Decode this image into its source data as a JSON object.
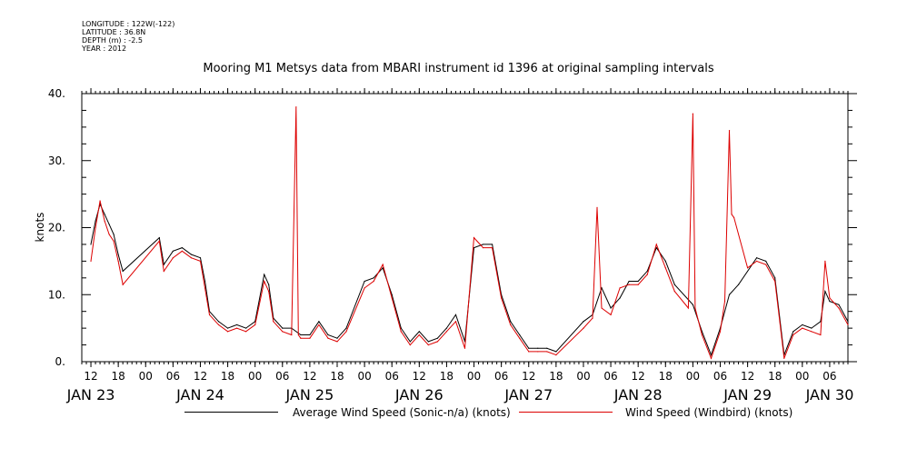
{
  "header": {
    "longitude": "LONGITUDE : 122W(-122)",
    "latitude": "LATITUDE : 36.8N",
    "depth": "DEPTH (m) : -2.5",
    "year": "YEAR : 2012"
  },
  "colors": {
    "series_black": "#000000",
    "series_red": "#dd0000",
    "axis": "#000000"
  },
  "chart_data": {
    "type": "line",
    "title": "Mooring M1 Metsys data from MBARI instrument id 1396 at original sampling intervals",
    "ylabel": "knots",
    "xlabel": "",
    "ylim": [
      0,
      40
    ],
    "xlim_hours": [
      10,
      178
    ],
    "yticks": [
      0,
      10,
      20,
      30,
      40
    ],
    "ytick_labels": [
      "0.",
      "10.",
      "20.",
      "30.",
      "40."
    ],
    "x_hour_ticks": [
      12,
      18,
      0,
      6,
      12,
      18,
      0,
      6,
      12,
      18,
      0,
      6,
      12,
      18,
      0,
      6,
      12,
      18,
      0,
      6,
      12,
      18,
      0,
      6,
      12,
      18,
      0,
      6,
      12,
      18,
      0,
      6
    ],
    "x_day_labels": [
      "JAN 23",
      "JAN 24",
      "JAN 25",
      "JAN 26",
      "JAN 27",
      "JAN 28",
      "JAN 29",
      "JAN 30"
    ],
    "legend": {
      "placement": "bottom",
      "entries": [
        "Average Wind Speed (Sonic-n/a) (knots)",
        "Wind Speed (Windbird) (knots)"
      ]
    },
    "series": [
      {
        "name": "Average Wind Speed (Sonic-n/a) (knots)",
        "color": "#000000",
        "x": [
          "23 Jan 12:00",
          "23 Jan 13:00",
          "23 Jan 14:00",
          "23 Jan 15:00",
          "23 Jan 16:00",
          "23 Jan 17:00",
          "23 Jan 18:00",
          "23 Jan 19:00",
          "24 Jan 03:00",
          "24 Jan 04:00",
          "24 Jan 06:00",
          "24 Jan 08:00",
          "24 Jan 10:00",
          "24 Jan 12:00",
          "24 Jan 13:00",
          "24 Jan 14:00",
          "24 Jan 16:00",
          "24 Jan 18:00",
          "24 Jan 20:00",
          "24 Jan 22:00",
          "25 Jan 00:00",
          "25 Jan 02:00",
          "25 Jan 03:00",
          "25 Jan 04:00",
          "25 Jan 06:00",
          "25 Jan 08:00",
          "25 Jan 10:00",
          "25 Jan 12:00",
          "25 Jan 14:00",
          "25 Jan 16:00",
          "25 Jan 18:00",
          "25 Jan 20:00",
          "26 Jan 00:00",
          "26 Jan 02:00",
          "26 Jan 04:00",
          "26 Jan 06:00",
          "26 Jan 08:00",
          "26 Jan 10:00",
          "26 Jan 12:00",
          "26 Jan 14:00",
          "26 Jan 16:00",
          "26 Jan 18:00",
          "26 Jan 20:00",
          "26 Jan 22:00",
          "27 Jan 00:00",
          "27 Jan 02:00",
          "27 Jan 04:00",
          "27 Jan 06:00",
          "27 Jan 08:00",
          "27 Jan 10:00",
          "27 Jan 12:00",
          "27 Jan 14:00",
          "27 Jan 16:00",
          "27 Jan 18:00",
          "28 Jan 00:00",
          "28 Jan 02:00",
          "28 Jan 04:00",
          "28 Jan 06:00",
          "28 Jan 08:00",
          "28 Jan 10:00",
          "28 Jan 12:00",
          "28 Jan 14:00",
          "28 Jan 16:00",
          "28 Jan 18:00",
          "28 Jan 20:00",
          "29 Jan 00:00",
          "29 Jan 02:00",
          "29 Jan 04:00",
          "29 Jan 06:00",
          "29 Jan 08:00",
          "29 Jan 10:00",
          "29 Jan 14:00",
          "29 Jan 16:00",
          "29 Jan 18:00",
          "29 Jan 20:00",
          "29 Jan 22:00",
          "30 Jan 00:00",
          "30 Jan 02:00",
          "30 Jan 04:00",
          "30 Jan 05:00",
          "30 Jan 06:00",
          "30 Jan 08:00",
          "30 Jan 10:00"
        ],
        "y": [
          17.5,
          21.0,
          23.5,
          22.0,
          20.5,
          19.0,
          16.0,
          13.5,
          18.5,
          14.5,
          16.5,
          17.0,
          16.0,
          15.5,
          12.0,
          7.5,
          6.0,
          5.0,
          5.5,
          5.0,
          6.0,
          13.0,
          11.5,
          6.5,
          5.0,
          5.0,
          4.0,
          4.0,
          6.0,
          4.0,
          3.5,
          5.0,
          12.0,
          12.5,
          14.0,
          10.0,
          5.0,
          3.0,
          4.5,
          3.0,
          3.5,
          5.0,
          7.0,
          3.0,
          17.0,
          17.5,
          17.5,
          10.0,
          6.0,
          4.0,
          2.0,
          2.0,
          2.0,
          1.5,
          6.0,
          7.0,
          11.0,
          8.0,
          9.5,
          12.0,
          12.0,
          13.5,
          17.0,
          15.0,
          11.5,
          8.5,
          4.5,
          1.0,
          5.0,
          10.0,
          11.5,
          15.5,
          15.0,
          12.5,
          1.0,
          4.5,
          5.5,
          5.0,
          6.0,
          10.5,
          9.0,
          8.5,
          6.0
        ]
      },
      {
        "name": "Wind Speed (Windbird) (knots)",
        "color": "#dd0000",
        "x": [
          "23 Jan 12:00",
          "23 Jan 13:00",
          "23 Jan 14:00",
          "23 Jan 15:00",
          "23 Jan 16:00",
          "23 Jan 17:00",
          "23 Jan 18:00",
          "23 Jan 19:00",
          "24 Jan 03:00",
          "24 Jan 04:00",
          "24 Jan 06:00",
          "24 Jan 08:00",
          "24 Jan 10:00",
          "24 Jan 12:00",
          "24 Jan 13:00",
          "24 Jan 14:00",
          "24 Jan 16:00",
          "24 Jan 18:00",
          "24 Jan 20:00",
          "24 Jan 22:00",
          "25 Jan 00:00",
          "25 Jan 02:00",
          "25 Jan 03:00",
          "25 Jan 04:00",
          "25 Jan 06:00",
          "25 Jan 08:00",
          "25 Jan 09:00",
          "25 Jan 09:30",
          "25 Jan 10:00",
          "25 Jan 12:00",
          "25 Jan 14:00",
          "25 Jan 16:00",
          "25 Jan 18:00",
          "25 Jan 20:00",
          "26 Jan 00:00",
          "26 Jan 02:00",
          "26 Jan 04:00",
          "26 Jan 06:00",
          "26 Jan 08:00",
          "26 Jan 10:00",
          "26 Jan 12:00",
          "26 Jan 14:00",
          "26 Jan 16:00",
          "26 Jan 18:00",
          "26 Jan 20:00",
          "26 Jan 22:00",
          "27 Jan 00:00",
          "27 Jan 02:00",
          "27 Jan 04:00",
          "27 Jan 06:00",
          "27 Jan 08:00",
          "27 Jan 10:00",
          "27 Jan 12:00",
          "27 Jan 14:00",
          "27 Jan 16:00",
          "27 Jan 18:00",
          "28 Jan 00:00",
          "28 Jan 02:00",
          "28 Jan 03:00",
          "28 Jan 04:00",
          "28 Jan 06:00",
          "28 Jan 08:00",
          "28 Jan 10:00",
          "28 Jan 12:00",
          "28 Jan 14:00",
          "28 Jan 16:00",
          "28 Jan 18:00",
          "28 Jan 20:00",
          "28 Jan 23:00",
          "29 Jan 00:00",
          "29 Jan 00:30",
          "29 Jan 02:00",
          "29 Jan 04:00",
          "29 Jan 06:00",
          "29 Jan 07:00",
          "29 Jan 08:00",
          "29 Jan 08:30",
          "29 Jan 09:00",
          "29 Jan 12:00",
          "29 Jan 14:00",
          "29 Jan 16:00",
          "29 Jan 18:00",
          "29 Jan 20:00",
          "29 Jan 22:00",
          "30 Jan 00:00",
          "30 Jan 02:00",
          "30 Jan 04:00",
          "30 Jan 05:00",
          "30 Jan 06:00",
          "30 Jan 08:00",
          "30 Jan 10:00"
        ],
        "y": [
          15.0,
          20.0,
          24.0,
          21.0,
          19.0,
          18.0,
          15.0,
          11.5,
          18.0,
          13.5,
          15.5,
          16.5,
          15.5,
          15.0,
          11.0,
          7.0,
          5.5,
          4.5,
          5.0,
          4.5,
          5.5,
          12.0,
          10.5,
          6.0,
          4.5,
          4.0,
          38.0,
          4.0,
          3.5,
          3.5,
          5.5,
          3.5,
          3.0,
          4.5,
          11.0,
          12.0,
          14.5,
          9.5,
          4.5,
          2.5,
          4.0,
          2.5,
          3.0,
          4.5,
          6.0,
          2.0,
          18.5,
          17.0,
          17.0,
          9.5,
          5.5,
          3.5,
          1.5,
          1.5,
          1.5,
          1.0,
          5.0,
          6.5,
          23.0,
          8.0,
          7.0,
          11.0,
          11.5,
          11.5,
          13.0,
          17.5,
          14.0,
          10.5,
          8.0,
          37.0,
          8.0,
          4.0,
          0.5,
          4.5,
          9.0,
          34.5,
          22.0,
          21.5,
          14.0,
          15.0,
          14.5,
          12.0,
          0.5,
          4.0,
          5.0,
          4.5,
          4.0,
          15.0,
          9.5,
          8.0,
          5.5
        ]
      }
    ]
  }
}
